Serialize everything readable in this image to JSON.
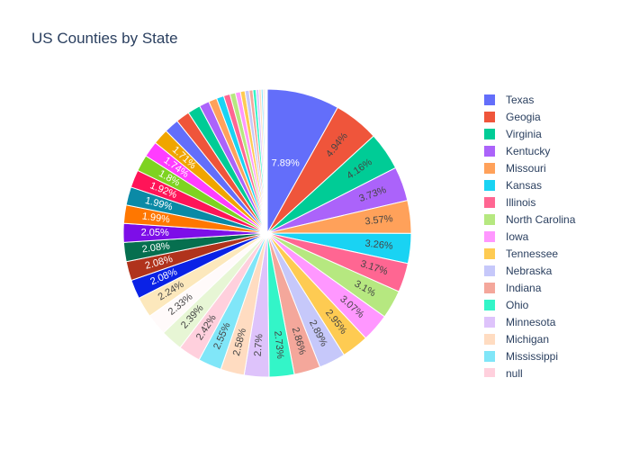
{
  "chart_data": {
    "type": "pie",
    "title": "US Counties by State",
    "slices": [
      {
        "label": "Texas",
        "value": 7.89,
        "color": "#636efa"
      },
      {
        "label": "Geogia",
        "value": 4.94,
        "color": "#EF553B"
      },
      {
        "label": "Virginia",
        "value": 4.16,
        "color": "#00cc96"
      },
      {
        "label": "Kentucky",
        "value": 3.73,
        "color": "#ab63fa"
      },
      {
        "label": "Missouri",
        "value": 3.57,
        "color": "#FFA15A"
      },
      {
        "label": "Kansas",
        "value": 3.26,
        "color": "#19d3f3"
      },
      {
        "label": "Illinois",
        "value": 3.17,
        "color": "#FF6692"
      },
      {
        "label": "North Carolina",
        "value": 3.1,
        "color": "#B6E880"
      },
      {
        "label": "Iowa",
        "value": 3.07,
        "color": "#FF97FF"
      },
      {
        "label": "Tennessee",
        "value": 2.95,
        "color": "#FECB52"
      },
      {
        "label": "Nebraska",
        "value": 2.89,
        "color": "#c6c8fa"
      },
      {
        "label": "Indiana",
        "value": 2.86,
        "color": "#f4a79b"
      },
      {
        "label": "Ohio",
        "value": 2.73,
        "color": "#33f5c8"
      },
      {
        "label": "Minnesota",
        "value": 2.7,
        "color": "#dec3fb"
      },
      {
        "label": "Michigan",
        "value": 2.58,
        "color": "#ffdcc1"
      },
      {
        "label": "Mississippi",
        "value": 2.55,
        "color": "#80e6f8"
      },
      {
        "label": "null",
        "value": 2.42,
        "color": "#ffd0dd"
      },
      {
        "label": "",
        "value": 2.39,
        "color": "#e7f6d5"
      },
      {
        "label": "",
        "value": 2.33,
        "color": "#fffafa"
      },
      {
        "label": "",
        "value": 2.24,
        "color": "#fce8bc"
      },
      {
        "label": "",
        "value": 2.08,
        "color": "#0a22e6"
      },
      {
        "label": "",
        "value": 2.08,
        "color": "#b0331c"
      },
      {
        "label": "",
        "value": 2.08,
        "color": "#066f4f"
      },
      {
        "label": "",
        "value": 2.05,
        "color": "#7d0ee8"
      },
      {
        "label": "",
        "value": 1.99,
        "color": "#ff7700"
      },
      {
        "label": "",
        "value": 1.99,
        "color": "#0b8aa6"
      },
      {
        "label": "",
        "value": 1.92,
        "color": "#ff1458"
      },
      {
        "label": "",
        "value": 1.8,
        "color": "#7ed321"
      },
      {
        "label": "",
        "value": 1.74,
        "color": "#ff3dff"
      },
      {
        "label": "",
        "value": 1.71,
        "color": "#f0a500"
      },
      {
        "label": "",
        "value": 1.6,
        "color": "#636efa"
      },
      {
        "label": "",
        "value": 1.5,
        "color": "#EF553B"
      },
      {
        "label": "",
        "value": 1.4,
        "color": "#00cc96"
      },
      {
        "label": "",
        "value": 1.1,
        "color": "#ab63fa"
      },
      {
        "label": "",
        "value": 0.9,
        "color": "#FFA15A"
      },
      {
        "label": "",
        "value": 0.8,
        "color": "#19d3f3"
      },
      {
        "label": "",
        "value": 0.7,
        "color": "#FF6692"
      },
      {
        "label": "",
        "value": 0.6,
        "color": "#B6E880"
      },
      {
        "label": "",
        "value": 0.55,
        "color": "#FF97FF"
      },
      {
        "label": "",
        "value": 0.5,
        "color": "#FECB52"
      },
      {
        "label": "",
        "value": 0.45,
        "color": "#c6c8fa"
      },
      {
        "label": "",
        "value": 0.4,
        "color": "#f4a79b"
      },
      {
        "label": "",
        "value": 0.35,
        "color": "#33f5c8"
      },
      {
        "label": "",
        "value": 0.3,
        "color": "#dec3fb"
      },
      {
        "label": "",
        "value": 0.25,
        "color": "#ffdcc1"
      },
      {
        "label": "",
        "value": 0.2,
        "color": "#80e6f8"
      },
      {
        "label": "",
        "value": 0.17,
        "color": "#ffd0dd"
      },
      {
        "label": "",
        "value": 0.14,
        "color": "#e7f6d5"
      },
      {
        "label": "",
        "value": 0.1,
        "color": "#fffafa"
      },
      {
        "label": "",
        "value": 0.05,
        "color": "#fce8bc"
      }
    ],
    "labeled_slice_count": 30,
    "legend_visible_count": 17,
    "legend_placement": "right"
  }
}
